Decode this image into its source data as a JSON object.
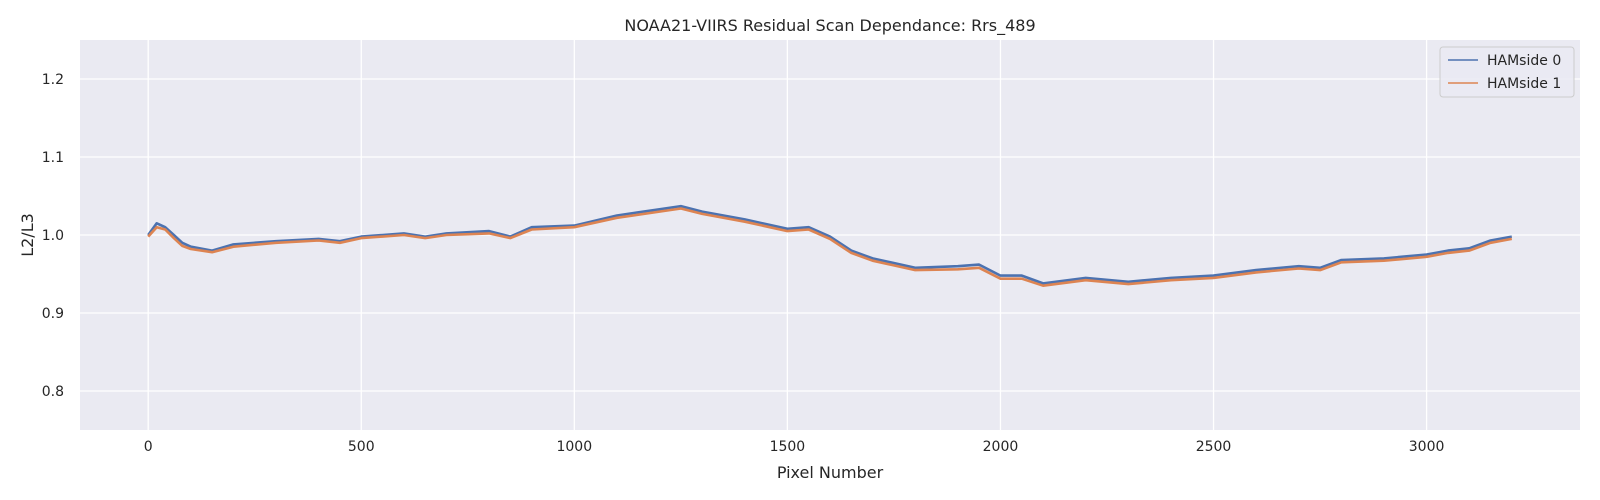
{
  "chart_data": {
    "type": "line",
    "title": "NOAA21-VIIRS Residual Scan Dependance: Rrs_489",
    "xlabel": "Pixel Number",
    "ylabel": "L2/L3",
    "xlim": [
      -160,
      3360
    ],
    "ylim": [
      0.75,
      1.25
    ],
    "x_ticks": [
      0,
      500,
      1000,
      1500,
      2000,
      2500,
      3000
    ],
    "x_tick_labels": [
      "0",
      "500",
      "1000",
      "1500",
      "2000",
      "2500",
      "3000"
    ],
    "y_ticks": [
      0.8,
      0.9,
      1.0,
      1.1,
      1.2
    ],
    "y_tick_labels": [
      "0.8",
      "0.9",
      "1.0",
      "1.1",
      "1.2"
    ],
    "grid": true,
    "legend_position": "top-right",
    "plot_background": "#eaeaf2",
    "grid_color": "#ffffff",
    "x": [
      0,
      20,
      40,
      60,
      80,
      100,
      150,
      200,
      300,
      400,
      450,
      500,
      600,
      650,
      700,
      800,
      850,
      900,
      1000,
      1100,
      1200,
      1250,
      1300,
      1400,
      1500,
      1550,
      1600,
      1650,
      1700,
      1800,
      1900,
      1950,
      2000,
      2050,
      2100,
      2200,
      2300,
      2400,
      2500,
      2600,
      2700,
      2750,
      2800,
      2900,
      3000,
      3050,
      3100,
      3150,
      3200
    ],
    "series": [
      {
        "name": "HAMside 0",
        "color": "#4c72b0",
        "values": [
          1.0,
          1.015,
          1.01,
          1.0,
          0.99,
          0.985,
          0.98,
          0.988,
          0.992,
          0.995,
          0.992,
          0.998,
          1.002,
          0.998,
          1.002,
          1.005,
          0.998,
          1.01,
          1.012,
          1.025,
          1.033,
          1.037,
          1.03,
          1.02,
          1.008,
          1.01,
          0.998,
          0.98,
          0.97,
          0.958,
          0.96,
          0.962,
          0.948,
          0.948,
          0.938,
          0.945,
          0.94,
          0.945,
          0.948,
          0.955,
          0.96,
          0.958,
          0.968,
          0.97,
          0.975,
          0.98,
          0.983,
          0.993,
          0.998
        ]
      },
      {
        "name": "HAMside 1",
        "color": "#dd8452",
        "values": [
          0.998,
          1.01,
          1.007,
          0.996,
          0.986,
          0.982,
          0.978,
          0.985,
          0.99,
          0.993,
          0.99,
          0.996,
          1.0,
          0.996,
          1.0,
          1.002,
          0.996,
          1.007,
          1.01,
          1.022,
          1.03,
          1.034,
          1.027,
          1.017,
          1.005,
          1.007,
          0.995,
          0.977,
          0.967,
          0.955,
          0.956,
          0.958,
          0.944,
          0.944,
          0.935,
          0.942,
          0.937,
          0.942,
          0.945,
          0.952,
          0.957,
          0.955,
          0.965,
          0.967,
          0.972,
          0.977,
          0.98,
          0.99,
          0.995
        ]
      }
    ]
  }
}
